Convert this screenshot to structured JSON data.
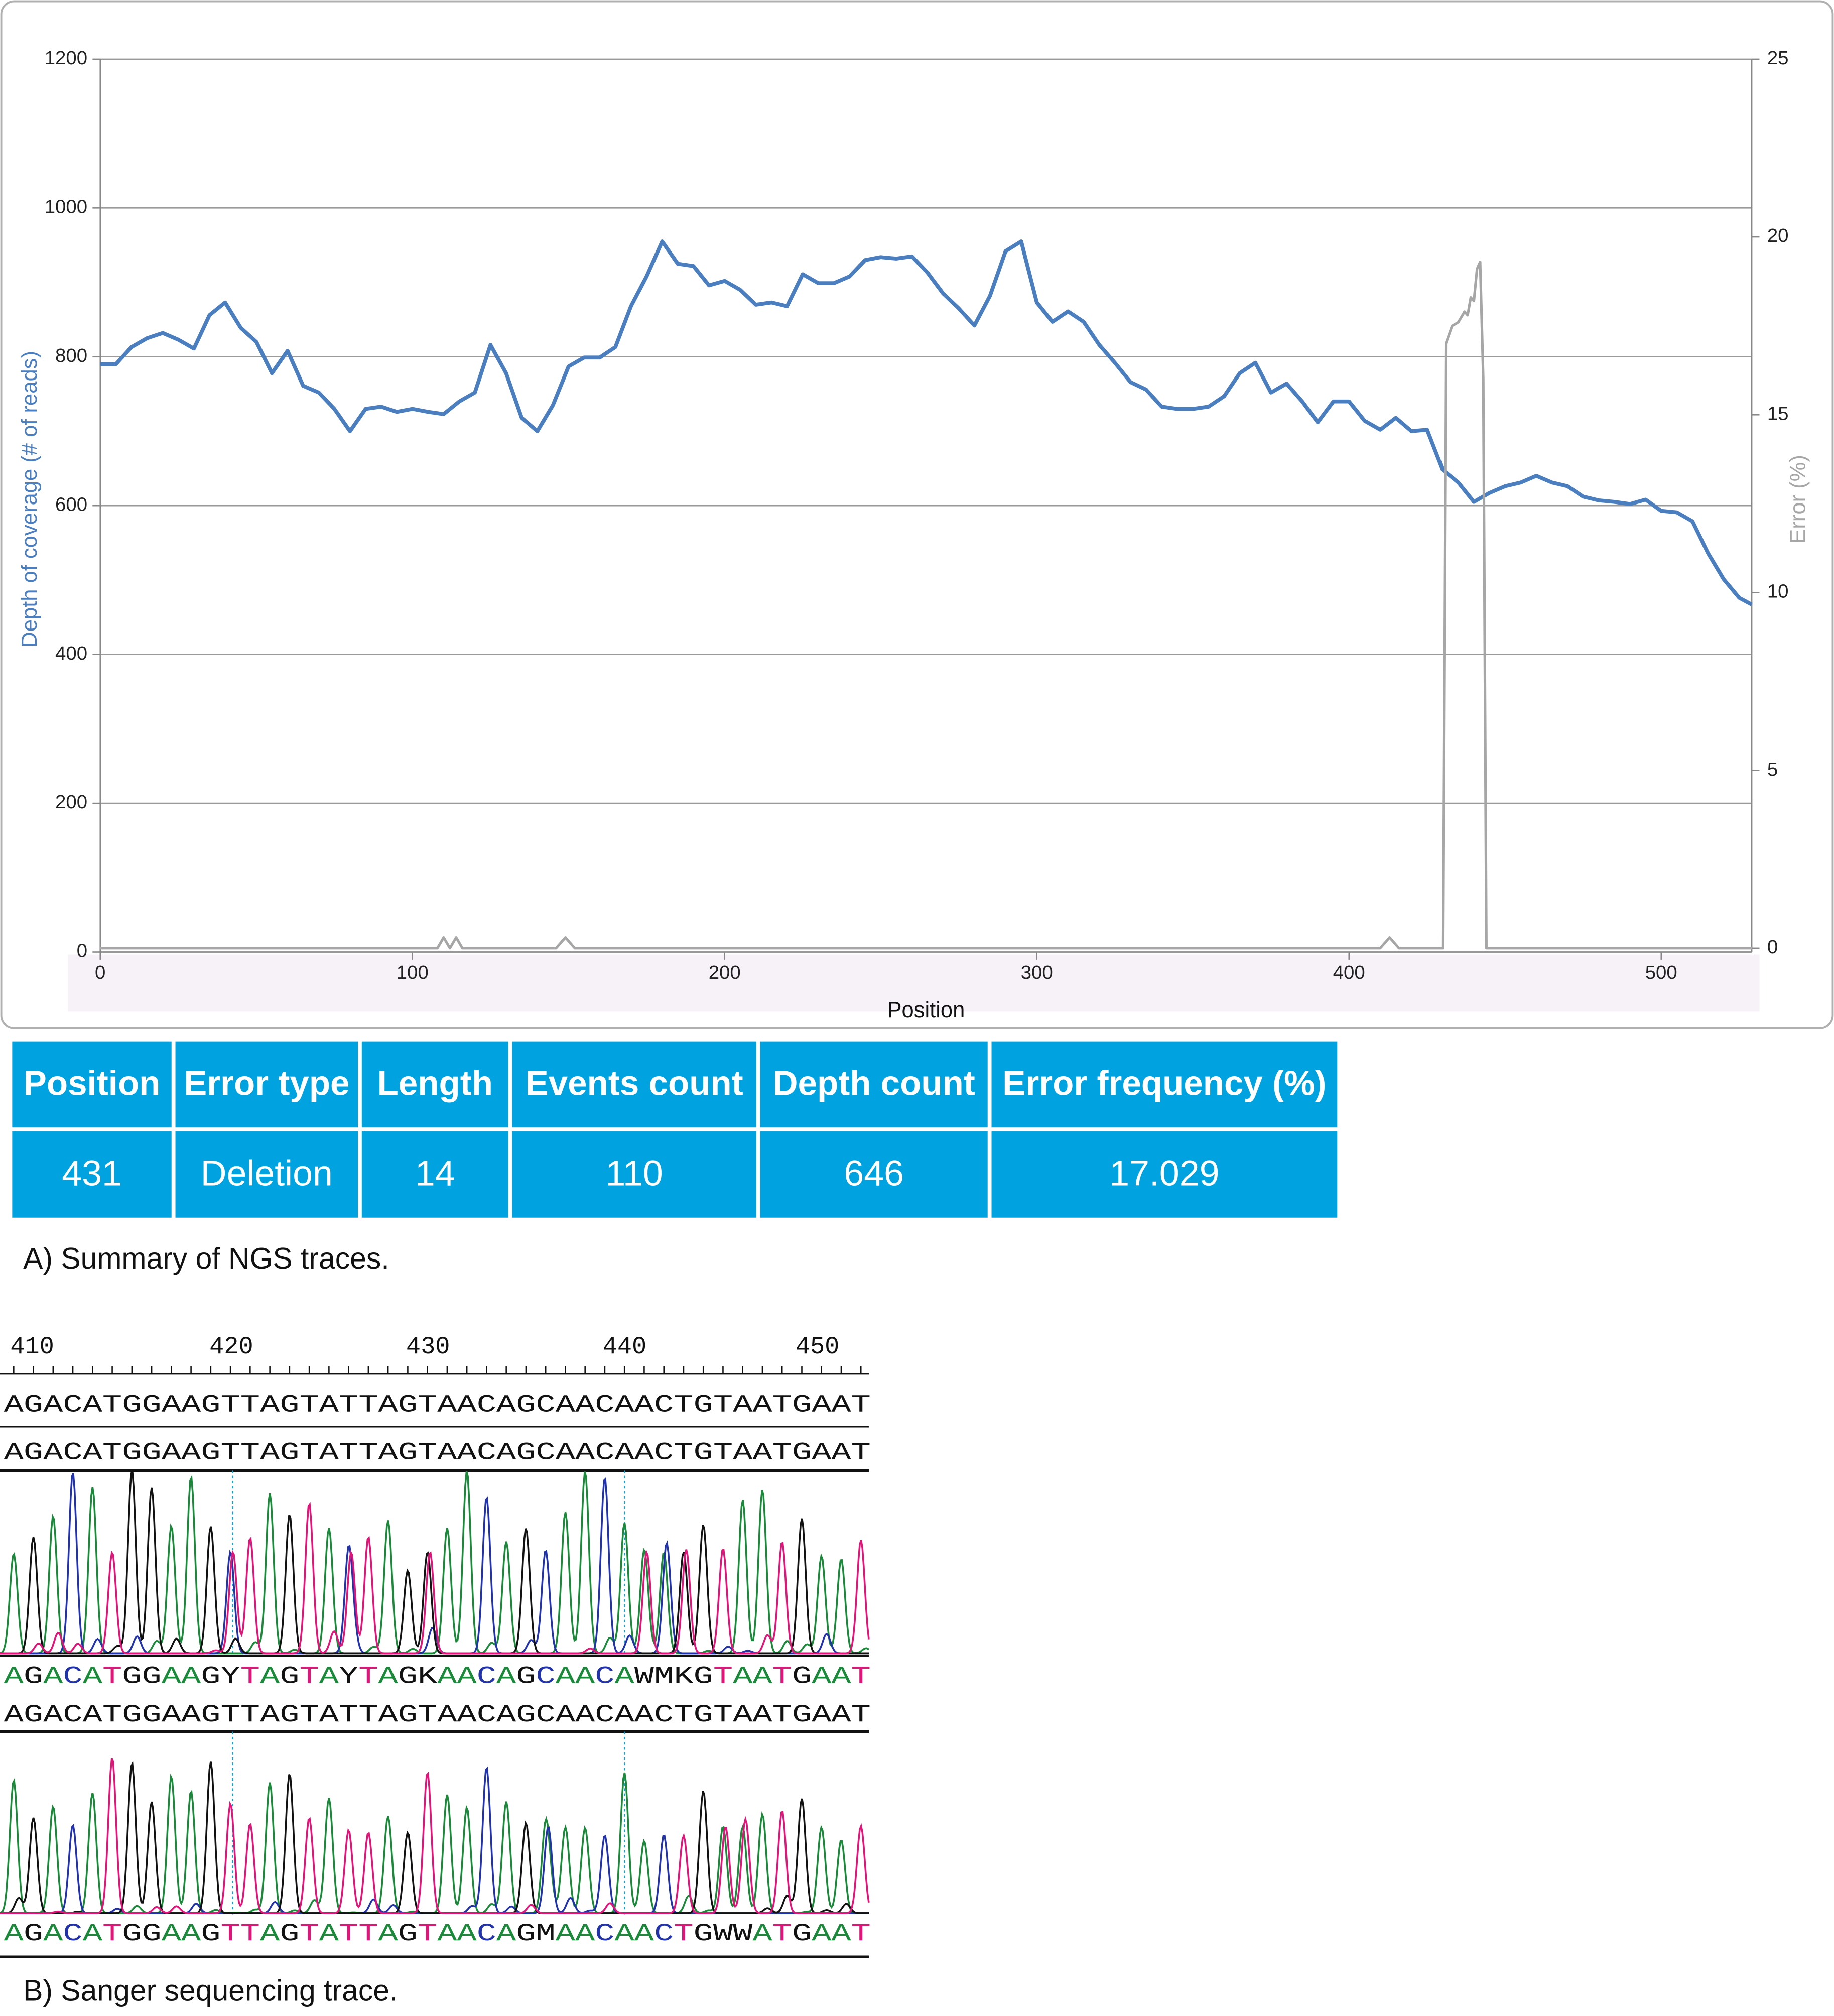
{
  "chart_data": {
    "type": "line",
    "xlabel": "Position",
    "ylabel": "Depth of coverage (# of reads)",
    "y2label": "Error (%)",
    "xlim": [
      0,
      529
    ],
    "xticks": [
      0,
      100,
      200,
      300,
      400,
      500
    ],
    "ylim": [
      0,
      1200
    ],
    "yticks": [
      0,
      200,
      400,
      600,
      800,
      1000,
      1200
    ],
    "y2lim": [
      0,
      25
    ],
    "y2ticks": [
      0,
      5,
      10,
      15,
      20,
      25
    ],
    "grid": true,
    "x": [
      0,
      5,
      10,
      15,
      20,
      25,
      30,
      35,
      40,
      45,
      50,
      55,
      60,
      65,
      70,
      75,
      80,
      85,
      90,
      95,
      100,
      105,
      110,
      115,
      120,
      125,
      130,
      135,
      140,
      145,
      150,
      155,
      160,
      165,
      170,
      175,
      180,
      185,
      190,
      195,
      200,
      205,
      210,
      215,
      220,
      225,
      230,
      235,
      240,
      245,
      250,
      255,
      260,
      265,
      270,
      275,
      280,
      285,
      290,
      295,
      300,
      305,
      310,
      315,
      320,
      325,
      330,
      335,
      340,
      345,
      350,
      355,
      360,
      365,
      370,
      375,
      380,
      385,
      390,
      395,
      400,
      405,
      410,
      415,
      420,
      425,
      430,
      435,
      440,
      445,
      450,
      455,
      460,
      465,
      470,
      475,
      480,
      485,
      490,
      495,
      500,
      505,
      510,
      515,
      520,
      525,
      529
    ],
    "series": [
      {
        "name": "Depth of coverage",
        "color": "#4a7ebf",
        "values": [
          790,
          790,
          813,
          825,
          832,
          823,
          811,
          856,
          873,
          839,
          820,
          778,
          808,
          761,
          752,
          730,
          700,
          730,
          733,
          726,
          730,
          726,
          723,
          740,
          752,
          816,
          778,
          718,
          700,
          735,
          787,
          799,
          799,
          813,
          868,
          908,
          955,
          925,
          922,
          896,
          902,
          890,
          870,
          873,
          868,
          911,
          899,
          899,
          908,
          930,
          934,
          932,
          935,
          913,
          885,
          865,
          842,
          882,
          942,
          955,
          873,
          847,
          861,
          847,
          816,
          792,
          766,
          756,
          733,
          730,
          730,
          733,
          747,
          778,
          792,
          752,
          764,
          740,
          712,
          740,
          740,
          714,
          702,
          718,
          700,
          702,
          648,
          631,
          605,
          617,
          626,
          631,
          640,
          631,
          626,
          612,
          607,
          605,
          602,
          608,
          593,
          591,
          579,
          536,
          501,
          476,
          467
        ]
      },
      {
        "name": "Error",
        "color": "#a6a6a6",
        "axis": "y2",
        "x": [
          0,
          108,
          110,
          112,
          114,
          116,
          118,
          146,
          149,
          152,
          410,
          413,
          416,
          429,
          430,
          431,
          433,
          435,
          437,
          438,
          439,
          440,
          441,
          442,
          443,
          444,
          529
        ],
        "values": [
          0,
          0,
          0.3,
          0,
          0.3,
          0,
          0,
          0,
          0.3,
          0,
          0,
          0.3,
          0,
          0,
          0,
          17,
          17.5,
          17.6,
          17.9,
          17.8,
          18.3,
          18.2,
          19.1,
          19.3,
          16,
          0,
          0
        ]
      }
    ]
  },
  "table": {
    "header": [
      "Position",
      "Error type",
      "Length",
      "Events count",
      "Depth count",
      "Error frequency (%)"
    ],
    "rows": [
      [
        "431",
        "Deletion",
        "14",
        "110",
        "646",
        "17.029"
      ]
    ]
  },
  "captions": [
    "A) Summary of NGS traces.",
    "B) Sanger sequencing trace."
  ],
  "sanger": {
    "ruler": [
      "410",
      "420",
      "430",
      "440",
      "450"
    ],
    "rows": [
      "AGACATGGAAGTTAGTATTAGTAACAGCAACAACTGTAATGAAT",
      "AGACATGGAAGTTAGTATTAGTAACAGCAACAACTGTAATGAAT",
      "AGACATGGAAGYTAGTAYTAGKAACAGCAACAWMKGTAATGAAT",
      "AGACATGGAAGTTAGTATTAGTAACAGCAACAACTGTAATGAAT",
      "AGACATGGAAGTTAGTATTAGTAACAGMAACAACTGWWATGAAT"
    ]
  }
}
